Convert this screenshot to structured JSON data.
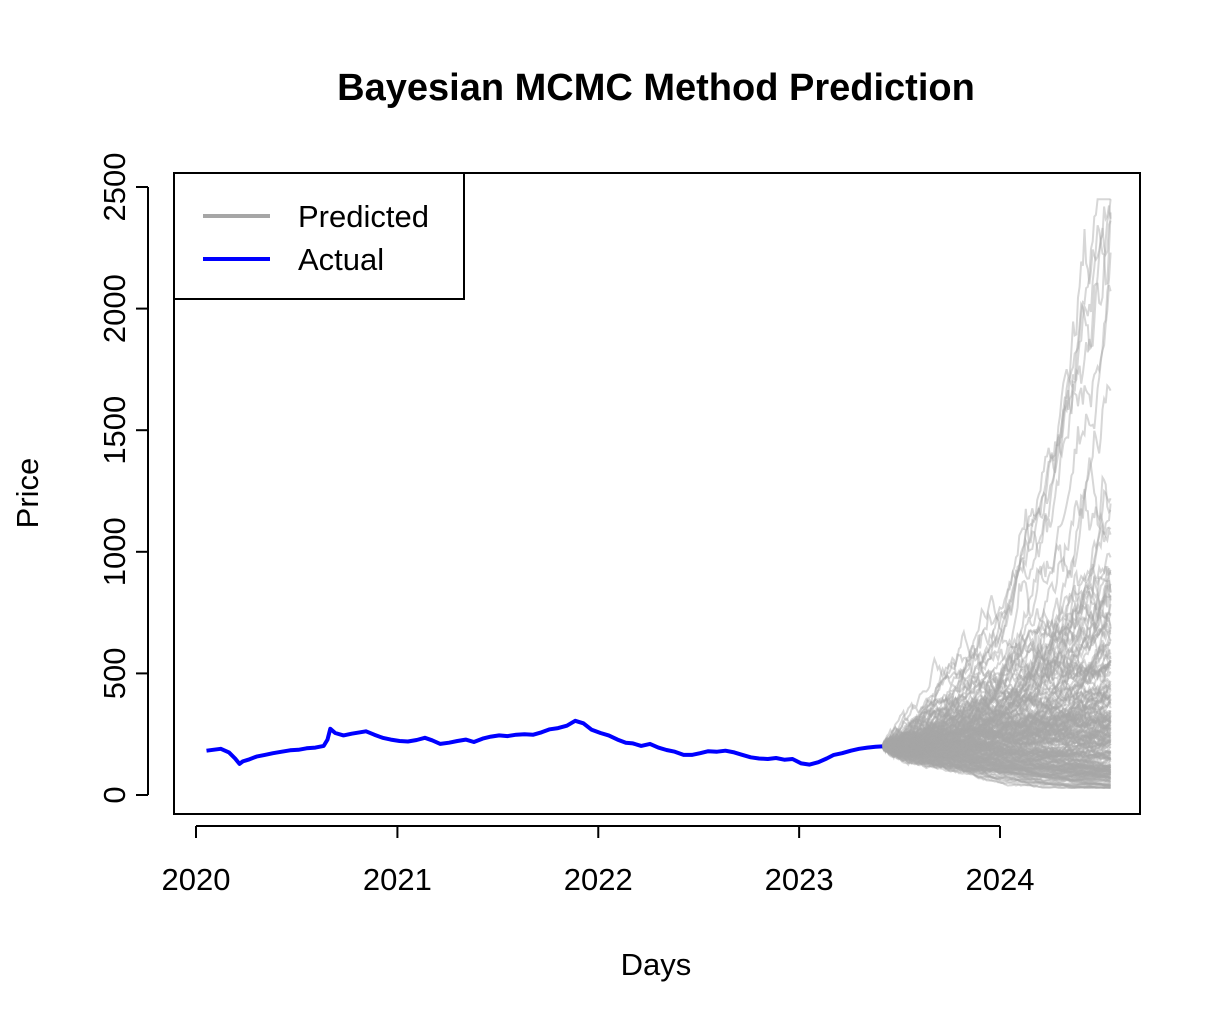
{
  "chart_data": {
    "type": "line",
    "title": "Bayesian MCMC Method Prediction",
    "xlabel": "Days",
    "ylabel": "Price",
    "xlim": [
      "2020-01-01",
      "2024-08-01"
    ],
    "ylim": [
      0,
      2500
    ],
    "x_ticks": [
      "2020",
      "2021",
      "2022",
      "2023",
      "2024"
    ],
    "y_ticks": [
      "0",
      "500",
      "1000",
      "1500",
      "2000",
      "2500"
    ],
    "grid": false,
    "legend": {
      "position": "top-left",
      "entries": [
        "Predicted",
        "Actual"
      ]
    },
    "series": [
      {
        "name": "Actual",
        "color": "#0000ff",
        "x": [
          "2020-01-20",
          "2020-02-01",
          "2020-02-15",
          "2020-03-01",
          "2020-03-12",
          "2020-03-20",
          "2020-03-26",
          "2020-04-05",
          "2020-04-20",
          "2020-05-05",
          "2020-05-20",
          "2020-06-05",
          "2020-06-20",
          "2020-07-05",
          "2020-07-20",
          "2020-08-05",
          "2020-08-20",
          "2020-08-27",
          "2020-09-01",
          "2020-09-10",
          "2020-09-25",
          "2020-10-10",
          "2020-10-25",
          "2020-11-05",
          "2020-11-20",
          "2020-12-05",
          "2020-12-20",
          "2021-01-05",
          "2021-01-20",
          "2021-02-05",
          "2021-02-20",
          "2021-03-05",
          "2021-03-20",
          "2021-04-05",
          "2021-04-20",
          "2021-05-05",
          "2021-05-20",
          "2021-06-05",
          "2021-06-20",
          "2021-07-05",
          "2021-07-20",
          "2021-08-05",
          "2021-08-20",
          "2021-09-05",
          "2021-09-20",
          "2021-10-05",
          "2021-10-20",
          "2021-11-05",
          "2021-11-20",
          "2021-12-05",
          "2021-12-20",
          "2022-01-05",
          "2022-01-20",
          "2022-02-05",
          "2022-02-20",
          "2022-03-05",
          "2022-03-20",
          "2022-04-05",
          "2022-04-20",
          "2022-05-05",
          "2022-05-20",
          "2022-06-05",
          "2022-06-20",
          "2022-07-05",
          "2022-07-20",
          "2022-08-05",
          "2022-08-20",
          "2022-09-05",
          "2022-09-20",
          "2022-10-05",
          "2022-10-20",
          "2022-11-05",
          "2022-11-20",
          "2022-12-05",
          "2022-12-20",
          "2023-01-05",
          "2023-01-20",
          "2023-02-05",
          "2023-02-20",
          "2023-03-05",
          "2023-03-20",
          "2023-04-05",
          "2023-04-20",
          "2023-05-05",
          "2023-05-20",
          "2023-06-01"
        ],
        "values": [
          182,
          186,
          190,
          175,
          150,
          128,
          138,
          145,
          158,
          165,
          172,
          178,
          184,
          186,
          192,
          195,
          202,
          228,
          272,
          255,
          245,
          252,
          258,
          262,
          248,
          235,
          228,
          222,
          220,
          226,
          235,
          225,
          210,
          215,
          222,
          228,
          218,
          232,
          240,
          245,
          242,
          248,
          250,
          248,
          258,
          270,
          275,
          285,
          305,
          295,
          268,
          255,
          245,
          228,
          215,
          212,
          202,
          210,
          195,
          185,
          178,
          165,
          165,
          172,
          180,
          178,
          182,
          175,
          165,
          155,
          150,
          148,
          152,
          145,
          148,
          130,
          125,
          135,
          150,
          165,
          172,
          182,
          190,
          195,
          198,
          200
        ]
      },
      {
        "name": "Predicted",
        "color": "#a6a6a6",
        "forecast_start": "2023-06-01",
        "forecast_end": "2024-08-01",
        "start_value": 200,
        "end_range": [
          30,
          2450
        ],
        "typical_end_range": [
          40,
          950
        ]
      }
    ]
  }
}
